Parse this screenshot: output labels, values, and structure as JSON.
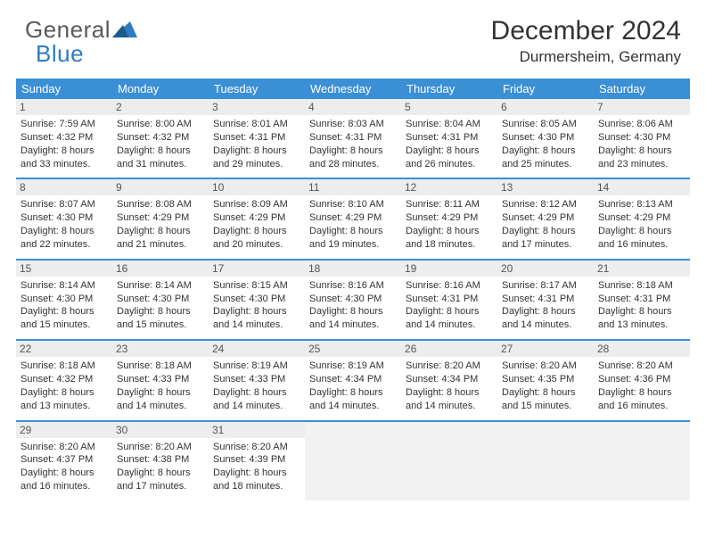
{
  "logo": {
    "general": "General",
    "blue": "Blue"
  },
  "title": "December 2024",
  "location": "Durmersheim, Germany",
  "header_bg": "#3b8fd4",
  "row_divider": "#3b8fd4",
  "daynum_bg": "#ededed",
  "empty_bg": "#f2f2f2",
  "text_color": "#333333",
  "weekdays": [
    "Sunday",
    "Monday",
    "Tuesday",
    "Wednesday",
    "Thursday",
    "Friday",
    "Saturday"
  ],
  "weeks": [
    [
      {
        "n": "1",
        "sr": "Sunrise: 7:59 AM",
        "ss": "Sunset: 4:32 PM",
        "d1": "Daylight: 8 hours",
        "d2": "and 33 minutes."
      },
      {
        "n": "2",
        "sr": "Sunrise: 8:00 AM",
        "ss": "Sunset: 4:32 PM",
        "d1": "Daylight: 8 hours",
        "d2": "and 31 minutes."
      },
      {
        "n": "3",
        "sr": "Sunrise: 8:01 AM",
        "ss": "Sunset: 4:31 PM",
        "d1": "Daylight: 8 hours",
        "d2": "and 29 minutes."
      },
      {
        "n": "4",
        "sr": "Sunrise: 8:03 AM",
        "ss": "Sunset: 4:31 PM",
        "d1": "Daylight: 8 hours",
        "d2": "and 28 minutes."
      },
      {
        "n": "5",
        "sr": "Sunrise: 8:04 AM",
        "ss": "Sunset: 4:31 PM",
        "d1": "Daylight: 8 hours",
        "d2": "and 26 minutes."
      },
      {
        "n": "6",
        "sr": "Sunrise: 8:05 AM",
        "ss": "Sunset: 4:30 PM",
        "d1": "Daylight: 8 hours",
        "d2": "and 25 minutes."
      },
      {
        "n": "7",
        "sr": "Sunrise: 8:06 AM",
        "ss": "Sunset: 4:30 PM",
        "d1": "Daylight: 8 hours",
        "d2": "and 23 minutes."
      }
    ],
    [
      {
        "n": "8",
        "sr": "Sunrise: 8:07 AM",
        "ss": "Sunset: 4:30 PM",
        "d1": "Daylight: 8 hours",
        "d2": "and 22 minutes."
      },
      {
        "n": "9",
        "sr": "Sunrise: 8:08 AM",
        "ss": "Sunset: 4:29 PM",
        "d1": "Daylight: 8 hours",
        "d2": "and 21 minutes."
      },
      {
        "n": "10",
        "sr": "Sunrise: 8:09 AM",
        "ss": "Sunset: 4:29 PM",
        "d1": "Daylight: 8 hours",
        "d2": "and 20 minutes."
      },
      {
        "n": "11",
        "sr": "Sunrise: 8:10 AM",
        "ss": "Sunset: 4:29 PM",
        "d1": "Daylight: 8 hours",
        "d2": "and 19 minutes."
      },
      {
        "n": "12",
        "sr": "Sunrise: 8:11 AM",
        "ss": "Sunset: 4:29 PM",
        "d1": "Daylight: 8 hours",
        "d2": "and 18 minutes."
      },
      {
        "n": "13",
        "sr": "Sunrise: 8:12 AM",
        "ss": "Sunset: 4:29 PM",
        "d1": "Daylight: 8 hours",
        "d2": "and 17 minutes."
      },
      {
        "n": "14",
        "sr": "Sunrise: 8:13 AM",
        "ss": "Sunset: 4:29 PM",
        "d1": "Daylight: 8 hours",
        "d2": "and 16 minutes."
      }
    ],
    [
      {
        "n": "15",
        "sr": "Sunrise: 8:14 AM",
        "ss": "Sunset: 4:30 PM",
        "d1": "Daylight: 8 hours",
        "d2": "and 15 minutes."
      },
      {
        "n": "16",
        "sr": "Sunrise: 8:14 AM",
        "ss": "Sunset: 4:30 PM",
        "d1": "Daylight: 8 hours",
        "d2": "and 15 minutes."
      },
      {
        "n": "17",
        "sr": "Sunrise: 8:15 AM",
        "ss": "Sunset: 4:30 PM",
        "d1": "Daylight: 8 hours",
        "d2": "and 14 minutes."
      },
      {
        "n": "18",
        "sr": "Sunrise: 8:16 AM",
        "ss": "Sunset: 4:30 PM",
        "d1": "Daylight: 8 hours",
        "d2": "and 14 minutes."
      },
      {
        "n": "19",
        "sr": "Sunrise: 8:16 AM",
        "ss": "Sunset: 4:31 PM",
        "d1": "Daylight: 8 hours",
        "d2": "and 14 minutes."
      },
      {
        "n": "20",
        "sr": "Sunrise: 8:17 AM",
        "ss": "Sunset: 4:31 PM",
        "d1": "Daylight: 8 hours",
        "d2": "and 14 minutes."
      },
      {
        "n": "21",
        "sr": "Sunrise: 8:18 AM",
        "ss": "Sunset: 4:31 PM",
        "d1": "Daylight: 8 hours",
        "d2": "and 13 minutes."
      }
    ],
    [
      {
        "n": "22",
        "sr": "Sunrise: 8:18 AM",
        "ss": "Sunset: 4:32 PM",
        "d1": "Daylight: 8 hours",
        "d2": "and 13 minutes."
      },
      {
        "n": "23",
        "sr": "Sunrise: 8:18 AM",
        "ss": "Sunset: 4:33 PM",
        "d1": "Daylight: 8 hours",
        "d2": "and 14 minutes."
      },
      {
        "n": "24",
        "sr": "Sunrise: 8:19 AM",
        "ss": "Sunset: 4:33 PM",
        "d1": "Daylight: 8 hours",
        "d2": "and 14 minutes."
      },
      {
        "n": "25",
        "sr": "Sunrise: 8:19 AM",
        "ss": "Sunset: 4:34 PM",
        "d1": "Daylight: 8 hours",
        "d2": "and 14 minutes."
      },
      {
        "n": "26",
        "sr": "Sunrise: 8:20 AM",
        "ss": "Sunset: 4:34 PM",
        "d1": "Daylight: 8 hours",
        "d2": "and 14 minutes."
      },
      {
        "n": "27",
        "sr": "Sunrise: 8:20 AM",
        "ss": "Sunset: 4:35 PM",
        "d1": "Daylight: 8 hours",
        "d2": "and 15 minutes."
      },
      {
        "n": "28",
        "sr": "Sunrise: 8:20 AM",
        "ss": "Sunset: 4:36 PM",
        "d1": "Daylight: 8 hours",
        "d2": "and 16 minutes."
      }
    ],
    [
      {
        "n": "29",
        "sr": "Sunrise: 8:20 AM",
        "ss": "Sunset: 4:37 PM",
        "d1": "Daylight: 8 hours",
        "d2": "and 16 minutes."
      },
      {
        "n": "30",
        "sr": "Sunrise: 8:20 AM",
        "ss": "Sunset: 4:38 PM",
        "d1": "Daylight: 8 hours",
        "d2": "and 17 minutes."
      },
      {
        "n": "31",
        "sr": "Sunrise: 8:20 AM",
        "ss": "Sunset: 4:39 PM",
        "d1": "Daylight: 8 hours",
        "d2": "and 18 minutes."
      },
      null,
      null,
      null,
      null
    ]
  ]
}
